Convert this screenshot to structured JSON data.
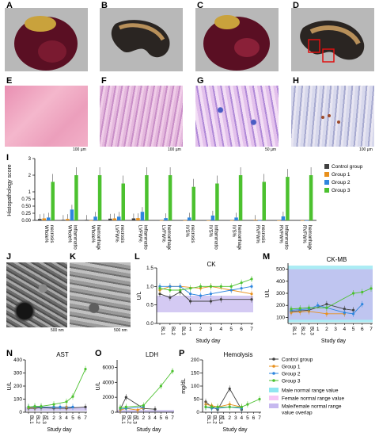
{
  "panel_labels": {
    "A": "A",
    "B": "B",
    "C": "C",
    "D": "D",
    "E": "E",
    "F": "F",
    "G": "G",
    "H": "H",
    "I": "I",
    "J": "J",
    "K": "K",
    "L": "L",
    "M": "M",
    "N": "N",
    "O": "O",
    "P": "P"
  },
  "scalebars": {
    "E": "100 µm",
    "F": "100 µm",
    "G": "50 µm",
    "H": "100 µm",
    "J": "500 nm",
    "K": "500 nm"
  },
  "colors": {
    "control": "#404040",
    "group1": "#e8901c",
    "group2": "#2e86de",
    "group3": "#4cc12f",
    "male": "#8fe6f0",
    "female": "#f5c6f5",
    "overlap": "#c6b8ef"
  },
  "chart_data": [
    {
      "panel": "I",
      "type": "bar",
      "ylabel": "Histopathology score",
      "yticks": [
        "0.00",
        "0.25",
        "0.50",
        "0.75",
        "1",
        "2",
        "3"
      ],
      "categories": [
        "Whole% necrosis",
        "Whole% inflammation",
        "Whole% hemorrhage",
        "LVFW% necrosis",
        "LVFW% inflammation",
        "LVFW% hemorrhage",
        "IVS% necrosis",
        "IVS% inflammation",
        "IVS% hemorrhage",
        "RVFW% necrosis",
        "RVFW% inflammation",
        "RVFW% hemorrhage"
      ],
      "series": [
        {
          "name": "Control group",
          "values": [
            0.05,
            0.02,
            0.02,
            0.06,
            0.07,
            0.0,
            0.0,
            0.0,
            0.0,
            0.0,
            0.0,
            0.0
          ]
        },
        {
          "name": "Group 1",
          "values": [
            0.07,
            0.05,
            0.0,
            0.07,
            0.08,
            0.0,
            0.0,
            0.0,
            0.0,
            0.02,
            0.0,
            0.0
          ]
        },
        {
          "name": "Group 2",
          "values": [
            0.1,
            0.38,
            0.13,
            0.13,
            0.3,
            0.08,
            0.1,
            0.17,
            0.1,
            0.0,
            0.14,
            0.0
          ]
        },
        {
          "name": "Group 3",
          "values": [
            1.6,
            2.0,
            2.0,
            1.5,
            2.0,
            2.0,
            1.3,
            1.5,
            2.0,
            1.6,
            1.9,
            2.0
          ]
        }
      ]
    },
    {
      "panel": "L",
      "type": "line",
      "title": "CK",
      "ylabel": "U/L",
      "xlabel": "Study day",
      "x": [
        "BL1",
        "BL2",
        "BL3",
        "1",
        "2",
        "3",
        "4",
        "5",
        "6",
        "7"
      ],
      "yticks": [
        "0.0",
        "0.5",
        "1.0",
        "1.5"
      ],
      "ylim": [
        0,
        1.5
      ],
      "series": [
        {
          "name": "Control group",
          "values": [
            0.8,
            0.7,
            0.85,
            0.6,
            null,
            0.6,
            0.65,
            null,
            null,
            0.65
          ]
        },
        {
          "name": "Group 1",
          "values": [
            0.9,
            1.0,
            1.0,
            null,
            0.95,
            1.0,
            null,
            0.9,
            null,
            0.8
          ]
        },
        {
          "name": "Group 2",
          "values": [
            1.0,
            1.0,
            1.0,
            0.8,
            0.75,
            0.8,
            null,
            0.9,
            0.95,
            1.0
          ]
        },
        {
          "name": "Group 3",
          "values": [
            0.95,
            0.9,
            0.9,
            0.95,
            1.0,
            1.0,
            1.0,
            1.0,
            1.1,
            1.2
          ]
        }
      ]
    },
    {
      "panel": "M",
      "type": "line",
      "title": "CK-MB",
      "ylabel": "U/L",
      "xlabel": "Study day",
      "x": [
        "BL1",
        "BL2",
        "BL3",
        "1",
        "2",
        "3",
        "4",
        "5",
        "6",
        "7"
      ],
      "yticks": [
        "100",
        "200",
        "300",
        "400",
        "500"
      ],
      "ylim": [
        50,
        550
      ],
      "series": [
        {
          "name": "Control group",
          "values": [
            150,
            155,
            160,
            null,
            210,
            null,
            170,
            160,
            null,
            null
          ]
        },
        {
          "name": "Group 1",
          "values": [
            140,
            145,
            150,
            null,
            130,
            null,
            130,
            null,
            null,
            null
          ]
        },
        {
          "name": "Group 2",
          "values": [
            160,
            165,
            170,
            200,
            180,
            null,
            140,
            130,
            210,
            null
          ]
        },
        {
          "name": "Group 3",
          "values": [
            170,
            175,
            180,
            null,
            180,
            null,
            null,
            300,
            310,
            340
          ]
        }
      ]
    },
    {
      "panel": "N",
      "type": "line",
      "title": "AST",
      "ylabel": "U/L",
      "xlabel": "Study day",
      "x": [
        "BL1",
        "BL2",
        "BL3",
        "1",
        "2",
        "3",
        "4",
        "5",
        "6",
        "7"
      ],
      "yticks": [
        "0",
        "100",
        "200",
        "300",
        "400"
      ],
      "ylim": [
        0,
        400
      ],
      "series": [
        {
          "name": "Control group",
          "values": [
            30,
            30,
            35,
            null,
            30,
            null,
            30,
            null,
            null,
            40
          ]
        },
        {
          "name": "Group 1",
          "values": [
            35,
            35,
            40,
            null,
            40,
            null,
            40,
            null,
            null,
            null
          ]
        },
        {
          "name": "Group 2",
          "values": [
            40,
            40,
            40,
            null,
            40,
            40,
            null,
            40,
            null,
            null
          ]
        },
        {
          "name": "Group 3",
          "values": [
            40,
            45,
            45,
            null,
            60,
            null,
            80,
            120,
            null,
            330
          ]
        }
      ]
    },
    {
      "panel": "O",
      "type": "line",
      "title": "LDH",
      "ylabel": "U/L",
      "xlabel": "Study day",
      "x": [
        "BL1",
        "BL2",
        "BL3",
        "1",
        "2",
        "3",
        "4",
        "5",
        "6",
        "7"
      ],
      "yticks": [
        "0",
        "2000",
        "4000",
        "6000"
      ],
      "ylim": [
        0,
        7000
      ],
      "series": [
        {
          "name": "Control group",
          "values": [
            400,
            2000,
            null,
            null,
            500,
            null,
            400,
            null,
            null,
            null
          ]
        },
        {
          "name": "Group 1",
          "values": [
            300,
            500,
            null,
            300,
            600,
            null,
            null,
            null,
            null,
            null
          ]
        },
        {
          "name": "Group 2",
          "values": [
            500,
            500,
            null,
            null,
            700,
            null,
            null,
            null,
            null,
            null
          ]
        },
        {
          "name": "Group 3",
          "values": [
            600,
            700,
            null,
            null,
            900,
            null,
            null,
            3500,
            null,
            5500
          ]
        }
      ]
    },
    {
      "panel": "P",
      "type": "line",
      "title": "Hemolysis",
      "ylabel": "mg/dL",
      "xlabel": "Study day",
      "x": [
        "BL1",
        "BL2",
        "BL3",
        "1",
        "2",
        "3",
        "4",
        "5",
        "6",
        "7"
      ],
      "yticks": [
        "0",
        "50",
        "100",
        "150",
        "200"
      ],
      "ylim": [
        0,
        200
      ],
      "series": [
        {
          "name": "Control group",
          "values": [
            40,
            20,
            10,
            null,
            90,
            null,
            10,
            null,
            null,
            null
          ]
        },
        {
          "name": "Group 1",
          "values": [
            30,
            25,
            20,
            null,
            30,
            null,
            20,
            null,
            null,
            null
          ]
        },
        {
          "name": "Group 2",
          "values": [
            20,
            15,
            15,
            null,
            20,
            null,
            15,
            null,
            null,
            null
          ]
        },
        {
          "name": "Group 3",
          "values": [
            20,
            20,
            20,
            null,
            20,
            null,
            20,
            30,
            null,
            50
          ]
        }
      ]
    }
  ],
  "legend": {
    "items": [
      "Control group",
      "Group 1",
      "Group 2",
      "Group 3"
    ],
    "ranges": [
      "Male normal range value",
      "Female normal range value",
      "Male/female normal range value overlap"
    ]
  }
}
